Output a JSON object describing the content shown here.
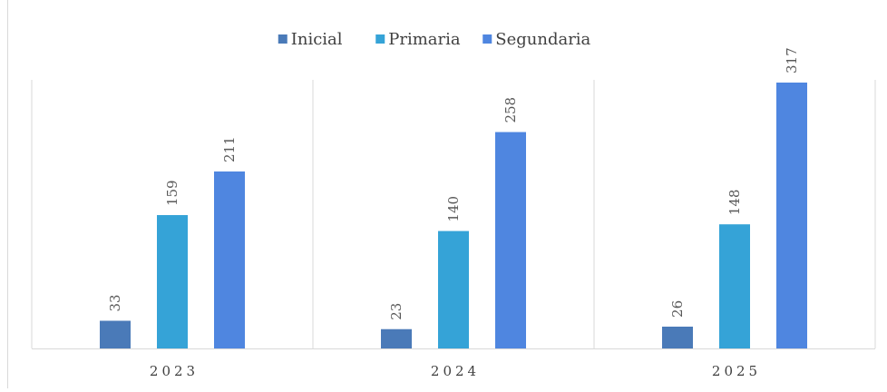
{
  "chart_data": {
    "type": "bar",
    "title": "",
    "xlabel": "",
    "ylabel": "",
    "categories": [
      "2023",
      "2024",
      "2025"
    ],
    "series": [
      {
        "name": "Inicial",
        "color": "#4a7ab8",
        "values": [
          33,
          23,
          26
        ]
      },
      {
        "name": "Primaria",
        "color": "#35a3d7",
        "values": [
          159,
          140,
          148
        ]
      },
      {
        "name": "Segundaria",
        "color": "#4f86e0",
        "values": [
          211,
          258,
          317
        ]
      }
    ],
    "ylim": [
      0,
      350
    ],
    "grid": false,
    "category_separators": true,
    "legend_position": "top",
    "data_labels": "rotated-vertical"
  }
}
